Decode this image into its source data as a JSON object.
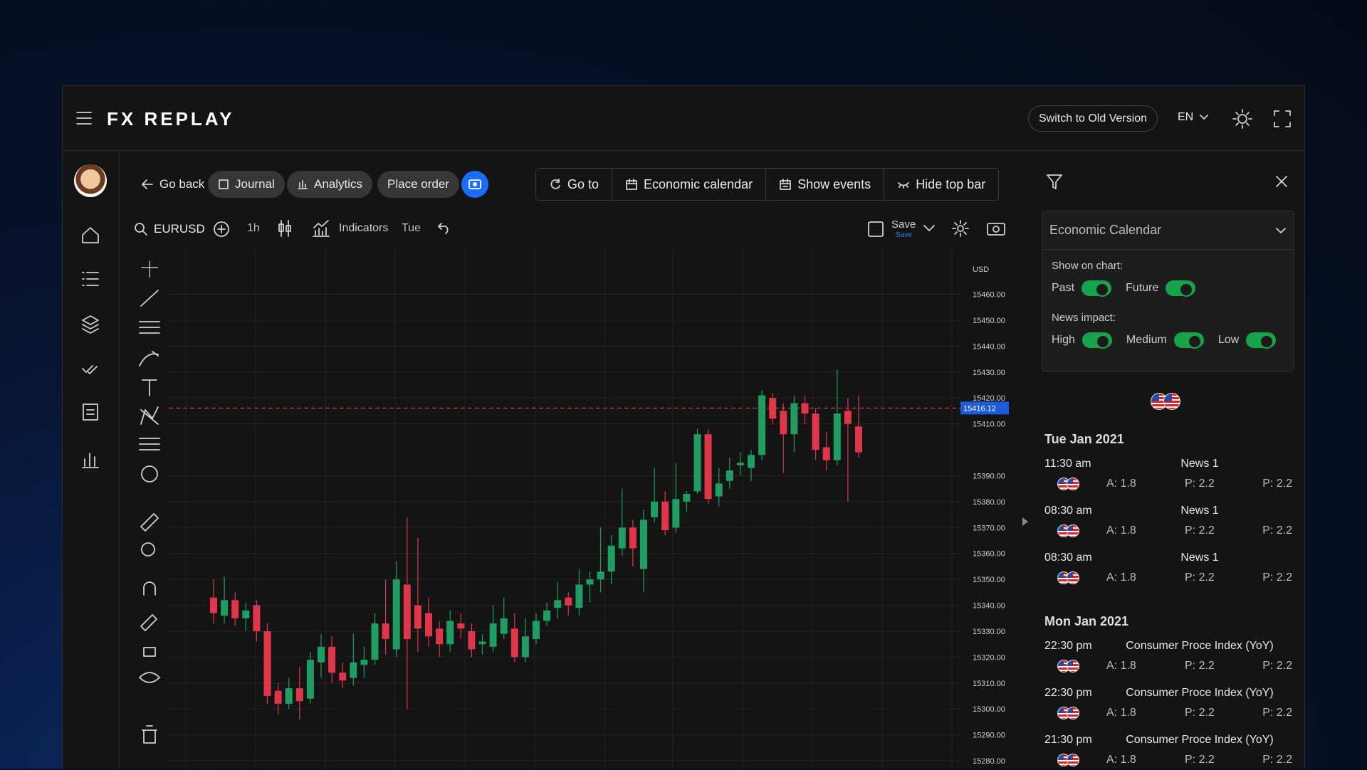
{
  "header": {
    "logo": "FX REPLAY",
    "switch_button": "Switch to Old Version",
    "language": "EN"
  },
  "toolbar": {
    "go_back": "Go back",
    "journal": "Journal",
    "analytics": "Analytics",
    "place_order": "Place order",
    "go_to": "Go to",
    "economic_calendar": "Economic calendar",
    "show_events": "Show events",
    "hide_top_bar": "Hide top bar"
  },
  "chart_header": {
    "symbol": "EURUSD",
    "interval": "1h",
    "indicators": "Indicators",
    "day": "Tue",
    "save": "Save",
    "save_sub": "Save"
  },
  "chart_data": {
    "type": "candlestick",
    "currency": "USD",
    "open": [
      15343,
      15336,
      15342,
      15335,
      15340,
      15330,
      15307,
      15302,
      15308,
      15304,
      15318,
      15324,
      15314,
      15312,
      15317,
      15319,
      15333,
      15323,
      15348,
      15340,
      15337,
      15331,
      15325,
      15333,
      15330,
      15325,
      15324,
      15329,
      15331,
      15320,
      15327,
      15334,
      15339,
      15343,
      15339,
      15348,
      15350,
      15353,
      15362,
      15370,
      15354,
      15374,
      15380,
      15370,
      15380,
      15384,
      15406,
      15382,
      15388,
      15394,
      15393,
      15398,
      15420,
      15415,
      15406,
      15418,
      15414,
      15401,
      15396,
      15415,
      15409
    ],
    "high": [
      15350,
      15351,
      15345,
      15341,
      15342,
      15333,
      15310,
      15312,
      15316,
      15322,
      15329,
      15328,
      15318,
      15329,
      15324,
      15337,
      15350,
      15357,
      15374,
      15366,
      15343,
      15334,
      15338,
      15337,
      15333,
      15329,
      15340,
      15343,
      15337,
      15335,
      15337,
      15341,
      15349,
      15345,
      15354,
      15353,
      15370,
      15367,
      15385,
      15373,
      15377,
      15393,
      15384,
      15395,
      15384,
      15408,
      15408,
      15393,
      15397,
      15399,
      15400,
      15423,
      15422,
      15418,
      15421,
      15421,
      15416,
      15407,
      15431,
      15420,
      15421
    ],
    "low": [
      15333,
      15333,
      15332,
      15330,
      15326,
      15302,
      15298,
      15300,
      15296,
      15302,
      15312,
      15310,
      15308,
      15309,
      15312,
      15317,
      15321,
      15320,
      15300,
      15322,
      15324,
      15320,
      15322,
      15327,
      15320,
      15321,
      15322,
      15327,
      15318,
      15318,
      15325,
      15332,
      15335,
      15336,
      15336,
      15341,
      15345,
      15348,
      15359,
      15355,
      15345,
      15372,
      15367,
      15368,
      15376,
      15383,
      15379,
      15378,
      15385,
      15390,
      15388,
      15396,
      15410,
      15391,
      15399,
      15410,
      15396,
      15392,
      15394,
      15380,
      15397
    ],
    "close": [
      15337,
      15342,
      15335,
      15338,
      15330,
      15305,
      15302,
      15308,
      15303,
      15319,
      15324,
      15314,
      15311,
      15318,
      15319,
      15333,
      15327,
      15350,
      15327,
      15331,
      15328,
      15325,
      15334,
      15331,
      15323,
      15326,
      15333,
      15335,
      15320,
      15328,
      15334,
      15338,
      15342,
      15340,
      15348,
      15350,
      15353,
      15363,
      15370,
      15362,
      15373,
      15380,
      15369,
      15381,
      15383,
      15406,
      15381,
      15387,
      15392,
      15395,
      15398,
      15421,
      15412,
      15406,
      15418,
      15414,
      15400,
      15396,
      15414,
      15410,
      15399
    ],
    "up_color": "#1f9d63",
    "down_color": "#e0364a",
    "ylim": [
      15277,
      15478
    ],
    "yticks": [
      {
        "value": 15280,
        "label": "15280.00"
      },
      {
        "value": 15290,
        "label": "15290.00"
      },
      {
        "value": 15300,
        "label": "15300.00"
      },
      {
        "value": 15310,
        "label": "15310.00"
      },
      {
        "value": 15320,
        "label": "15320.00"
      },
      {
        "value": 15330,
        "label": "15330.00"
      },
      {
        "value": 15340,
        "label": "15340.00"
      },
      {
        "value": 15350,
        "label": "15350.00"
      },
      {
        "value": 15360,
        "label": "15360.00"
      },
      {
        "value": 15370,
        "label": "15370.00"
      },
      {
        "value": 15380,
        "label": "15380.00"
      },
      {
        "value": 15390,
        "label": "15390.00"
      },
      {
        "value": 15410,
        "label": "15410.00"
      },
      {
        "value": 15420,
        "label": "15420.00"
      },
      {
        "value": 15430,
        "label": "15430.00"
      },
      {
        "value": 15440,
        "label": "15440.00"
      },
      {
        "value": 15450,
        "label": "15450.00"
      },
      {
        "value": 15460,
        "label": "15460.00"
      }
    ],
    "last_price": 15416.12,
    "grid": true
  },
  "calendar": {
    "title": "Economic Calendar",
    "show_on_chart": "Show on chart:",
    "past": "Past",
    "future": "Future",
    "news_impact": "News impact:",
    "high": "High",
    "medium": "Medium",
    "low": "Low",
    "days": [
      {
        "label": "Tue Jan 2021",
        "events": [
          {
            "time": "11:30 am",
            "title": "News 1",
            "actual": "A: 1.8",
            "previous": "P: 2.2",
            "forecast": "P: 2.2"
          },
          {
            "time": "08:30 am",
            "title": "News 1",
            "actual": "A: 1.8",
            "previous": "P: 2.2",
            "forecast": "P: 2.2"
          },
          {
            "time": "08:30 am",
            "title": "News 1",
            "actual": "A: 1.8",
            "previous": "P: 2.2",
            "forecast": "P: 2.2"
          }
        ]
      },
      {
        "label": "Mon Jan 2021",
        "events": [
          {
            "time": "22:30 pm",
            "title": "Consumer Proce Index (YoY)",
            "actual": "A: 1.8",
            "previous": "P: 2.2",
            "forecast": "P: 2.2"
          },
          {
            "time": "22:30 pm",
            "title": "Consumer Proce Index (YoY)",
            "actual": "A: 1.8",
            "previous": "P: 2.2",
            "forecast": "P: 2.2"
          },
          {
            "time": "21:30 pm",
            "title": "Consumer Proce Index (YoY)",
            "actual": "A: 1.8",
            "previous": "P: 2.2",
            "forecast": "P: 2.2"
          }
        ]
      }
    ]
  }
}
